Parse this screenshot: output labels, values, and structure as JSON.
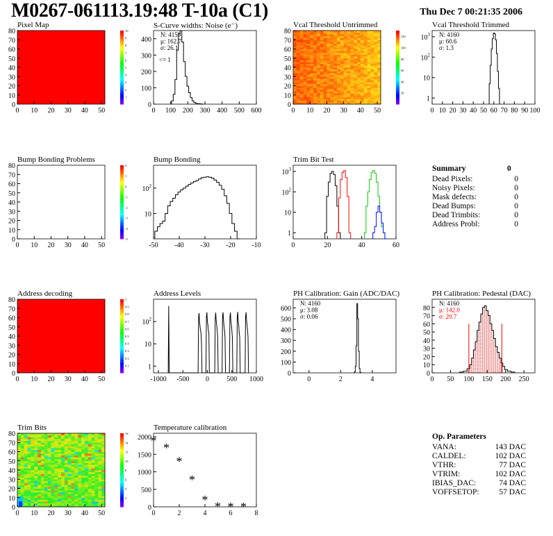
{
  "header": {
    "title": "M0267-061113.19:48 T-10a (C1)",
    "date": "Thu Dec  7 00:21:35 2006"
  },
  "colors": {
    "hist_line": "#000000",
    "map_red": "#ff0000",
    "trim_bit_series": [
      "#000000",
      "#ff0000",
      "#00cc00",
      "#0000ff"
    ],
    "pedestal_fill": "#cc0000"
  },
  "chart_data": [
    {
      "id": "pixel-map",
      "type": "heatmap",
      "title": "Pixel Map",
      "xlim": [
        0,
        52
      ],
      "ylim": [
        0,
        80
      ],
      "xticks": [
        0,
        10,
        20,
        30,
        40,
        50
      ],
      "yticks": [
        0,
        10,
        20,
        30,
        40,
        50,
        60,
        70,
        80
      ],
      "palette": "uniform_red",
      "zlim": [
        0,
        10
      ],
      "palette_ticks": [
        1,
        2,
        3,
        4,
        5,
        6,
        7,
        8,
        9,
        10
      ]
    },
    {
      "id": "scurve-widths",
      "type": "line",
      "title": "S-Curve widths: Noise (e⁻)",
      "xlim": [
        0,
        600
      ],
      "ylim": [
        0,
        450
      ],
      "xticks": [
        0,
        100,
        200,
        300,
        400,
        500,
        600
      ],
      "yticks": [
        0,
        100,
        200,
        300,
        400
      ],
      "stats": [
        "N: 4159",
        "μ: 162.7",
        "σ: 26.1"
      ],
      "annotation": "<= 1",
      "x": [
        110,
        120,
        130,
        140,
        150,
        160,
        170,
        180,
        190,
        200,
        210,
        220,
        230,
        240,
        250,
        260,
        270,
        280,
        290
      ],
      "y": [
        20,
        60,
        150,
        330,
        430,
        450,
        380,
        260,
        170,
        110,
        70,
        40,
        20,
        10,
        5,
        3,
        2,
        1,
        0
      ]
    },
    {
      "id": "vcal-untrimmed",
      "type": "heatmap",
      "title": "Vcal Threshold Untrimmed",
      "xlim": [
        0,
        52
      ],
      "ylim": [
        0,
        80
      ],
      "xticks": [
        0,
        10,
        20,
        30,
        40,
        50
      ],
      "yticks": [
        0,
        10,
        20,
        30,
        40,
        50,
        60,
        70,
        80
      ],
      "palette": "orange_yellow_noise",
      "zlim": [
        0,
        130
      ],
      "palette_ticks": [
        20,
        40,
        60,
        80,
        100,
        120
      ]
    },
    {
      "id": "vcal-trimmed",
      "type": "line",
      "log_y": true,
      "title": "Vcal Threshold Trimmed",
      "xlim": [
        0,
        100
      ],
      "ylim": [
        0.5,
        2000
      ],
      "xticks": [
        0,
        10,
        20,
        30,
        40,
        50,
        60,
        70,
        80,
        90,
        100
      ],
      "yticks": [
        1,
        10,
        100,
        1000
      ],
      "stats": [
        "N: 4160",
        "μ: 60.6",
        "σ:  1.3"
      ],
      "x": [
        56,
        57,
        58,
        59,
        60,
        61,
        62,
        63,
        64,
        65
      ],
      "y": [
        5,
        40,
        250,
        800,
        1500,
        1400,
        700,
        150,
        20,
        3
      ]
    },
    {
      "id": "bump-bonding-problems",
      "type": "heatmap",
      "title": "Bump Bonding Problems",
      "xlim": [
        0,
        52
      ],
      "ylim": [
        0,
        80
      ],
      "xticks": [
        0,
        10,
        20,
        30,
        40,
        50
      ],
      "yticks": [
        0,
        10,
        20,
        30,
        40,
        50,
        60,
        70,
        80
      ],
      "palette": "empty",
      "zlim": [
        -5,
        2
      ],
      "palette_ticks": [
        2,
        1,
        0,
        -1,
        -2,
        -3,
        -4,
        -5
      ]
    },
    {
      "id": "bump-bonding",
      "type": "line",
      "log_y": true,
      "title": "Bump Bonding",
      "xlim": [
        -50,
        -10
      ],
      "ylim": [
        1,
        800
      ],
      "xticks": [
        -50,
        -40,
        -30,
        -20,
        -10
      ],
      "yticks": [
        10,
        100
      ],
      "x": [
        -49,
        -48,
        -47,
        -46,
        -45,
        -44,
        -43,
        -42,
        -41,
        -40,
        -39,
        -38,
        -37,
        -36,
        -35,
        -34,
        -33,
        -32,
        -31,
        -30,
        -29,
        -28,
        -27,
        -26,
        -25,
        -24,
        -23,
        -22,
        -21,
        -20,
        -19,
        -18,
        -17
      ],
      "y": [
        2,
        3,
        4,
        5,
        10,
        20,
        30,
        40,
        55,
        70,
        85,
        100,
        120,
        140,
        160,
        180,
        200,
        230,
        260,
        270,
        280,
        270,
        250,
        210,
        170,
        130,
        90,
        50,
        25,
        10,
        4,
        2,
        1
      ]
    },
    {
      "id": "trim-bit-test",
      "type": "line",
      "log_y": true,
      "title": "Trim Bit Test",
      "xlim": [
        0,
        60
      ],
      "ylim": [
        0.5,
        2000
      ],
      "xticks": [
        0,
        20,
        40,
        60
      ],
      "yticks": [
        1,
        10,
        100,
        1000
      ],
      "series": [
        {
          "x": [
            19,
            20,
            21,
            22,
            23,
            24,
            25,
            26,
            27
          ],
          "y": [
            1,
            60,
            300,
            800,
            1000,
            700,
            200,
            20,
            1
          ]
        },
        {
          "x": [
            26,
            27,
            28,
            29,
            30,
            31,
            32,
            33
          ],
          "y": [
            1,
            50,
            400,
            900,
            1100,
            500,
            60,
            1
          ]
        },
        {
          "x": [
            42,
            43,
            44,
            45,
            46,
            47,
            48,
            49,
            50,
            51,
            52,
            53
          ],
          "y": [
            1,
            20,
            100,
            400,
            900,
            1100,
            800,
            300,
            60,
            10,
            2,
            1
          ]
        },
        {
          "x": [
            47,
            48,
            49,
            50,
            51,
            52,
            53,
            54
          ],
          "y": [
            1,
            2,
            10,
            20,
            10,
            3,
            1,
            0
          ]
        }
      ]
    },
    {
      "id": "address-decoding",
      "type": "heatmap",
      "title": "Address decoding",
      "xlim": [
        0,
        52
      ],
      "ylim": [
        0,
        80
      ],
      "xticks": [
        0,
        10,
        20,
        30,
        40,
        50
      ],
      "yticks": [
        0,
        10,
        20,
        30,
        40,
        50,
        60,
        70,
        80
      ],
      "palette": "uniform_red",
      "zlim": [
        0,
        1
      ],
      "palette_ticks": [
        0.1,
        0.2,
        0.3,
        0.4,
        0.5,
        0.6,
        0.7,
        0.8,
        0.9,
        1
      ]
    },
    {
      "id": "address-levels",
      "type": "line",
      "log_y": true,
      "title": "Address Levels",
      "xlim": [
        -1100,
        1000
      ],
      "ylim": [
        0.5,
        1000
      ],
      "xticks": [
        -1000,
        -500,
        0,
        500,
        1000
      ],
      "yticks": [
        1,
        10,
        100
      ],
      "x": [
        -800,
        -790,
        -780,
        -190,
        -180,
        -170,
        -160,
        -150,
        -140,
        -130,
        -120,
        -110,
        -30,
        -20,
        -10,
        0,
        10,
        20,
        30,
        40,
        150,
        160,
        170,
        180,
        190,
        200,
        210,
        220,
        300,
        310,
        320,
        330,
        340,
        350,
        360,
        370,
        450,
        460,
        470,
        480,
        490,
        500,
        510,
        520,
        600,
        610,
        620,
        630,
        640,
        650,
        660,
        670,
        770,
        780,
        790,
        800,
        810,
        820,
        830,
        840
      ],
      "y": [
        0,
        500,
        0,
        0,
        150,
        240,
        90,
        60,
        40,
        30,
        10,
        0,
        0,
        160,
        260,
        100,
        70,
        40,
        30,
        0,
        0,
        140,
        250,
        110,
        70,
        40,
        20,
        0,
        0,
        170,
        260,
        110,
        60,
        40,
        20,
        0,
        0,
        160,
        250,
        100,
        70,
        40,
        20,
        0,
        0,
        170,
        270,
        100,
        70,
        30,
        20,
        0,
        0,
        160,
        260,
        110,
        70,
        40,
        20,
        0
      ]
    },
    {
      "id": "ph-gain",
      "type": "line",
      "title": "PH Calibration: Gain (ADC/DAC)",
      "xlim": [
        -1,
        5.5
      ],
      "ylim": [
        0,
        680
      ],
      "xticks": [
        0,
        2,
        4
      ],
      "yticks": [
        0,
        100,
        200,
        300,
        400,
        500,
        600
      ],
      "stats": [
        "N: 4160",
        "μ: 3.08",
        "σ: 0.06"
      ],
      "x": [
        2.85,
        2.9,
        2.95,
        3.0,
        3.05,
        3.1,
        3.15,
        3.2,
        3.25,
        3.3
      ],
      "y": [
        0,
        10,
        60,
        250,
        640,
        500,
        200,
        40,
        5,
        0
      ]
    },
    {
      "id": "ph-pedestal",
      "type": "line",
      "title": "PH Calibration: Pedestal (DAC)",
      "xlim": [
        0,
        280
      ],
      "ylim": [
        0,
        90
      ],
      "xticks": [
        0,
        50,
        100,
        150,
        200,
        250
      ],
      "yticks": [
        0,
        10,
        20,
        30,
        40,
        50,
        60,
        70,
        80
      ],
      "stats": [
        "N: 4160",
        "μ: 142.0",
        "σ: 20.7"
      ],
      "markers": [
        100,
        190
      ],
      "x": [
        80,
        90,
        100,
        105,
        110,
        115,
        120,
        125,
        130,
        135,
        140,
        145,
        150,
        155,
        160,
        165,
        170,
        175,
        180,
        185,
        190,
        195,
        200,
        210,
        220
      ],
      "y": [
        1,
        2,
        5,
        10,
        18,
        28,
        38,
        52,
        62,
        72,
        80,
        82,
        76,
        70,
        60,
        52,
        42,
        32,
        25,
        18,
        12,
        8,
        4,
        2,
        1
      ]
    },
    {
      "id": "trim-bits",
      "type": "heatmap",
      "title": "Trim Bits",
      "xlim": [
        0,
        52
      ],
      "ylim": [
        0,
        80
      ],
      "xticks": [
        0,
        10,
        20,
        30,
        40,
        50
      ],
      "yticks": [
        0,
        10,
        20,
        30,
        40,
        50,
        60,
        70,
        80
      ],
      "palette": "green_noise",
      "zlim": [
        0,
        16
      ],
      "palette_ticks": [
        2,
        4,
        6,
        8,
        10,
        12,
        14,
        16
      ]
    },
    {
      "id": "temperature-calibration",
      "type": "scatter",
      "title": "Temperature calibration",
      "xlim": [
        0,
        8
      ],
      "ylim": [
        0,
        2100
      ],
      "xticks": [
        0,
        2,
        4,
        6,
        8
      ],
      "yticks": [
        0,
        500,
        1000,
        1500,
        2000
      ],
      "x": [
        0,
        1,
        2,
        3,
        4,
        5,
        6,
        7
      ],
      "y": [
        1900,
        1700,
        1320,
        790,
        220,
        30,
        20,
        20
      ]
    }
  ],
  "summary": {
    "title": "Summary",
    "total": "0",
    "rows": [
      {
        "label": "Dead Pixels:",
        "value": "0"
      },
      {
        "label": "Noisy Pixels:",
        "value": "0"
      },
      {
        "label": "Mask defects:",
        "value": "0"
      },
      {
        "label": "Dead Bumps:",
        "value": "0"
      },
      {
        "label": "Dead Trimbits:",
        "value": "0"
      },
      {
        "label": "Address Probl:",
        "value": "0"
      }
    ]
  },
  "op_params": {
    "title": "Op. Parameters",
    "rows": [
      {
        "label": "VANA:",
        "value": "143 DAC"
      },
      {
        "label": "CALDEL:",
        "value": "102 DAC"
      },
      {
        "label": "VTHR:",
        "value": "77 DAC"
      },
      {
        "label": "VTRIM:",
        "value": "102 DAC"
      },
      {
        "label": "IBIAS_DAC:",
        "value": "74 DAC"
      },
      {
        "label": "VOFFSETOP:",
        "value": "57 DAC"
      }
    ]
  }
}
